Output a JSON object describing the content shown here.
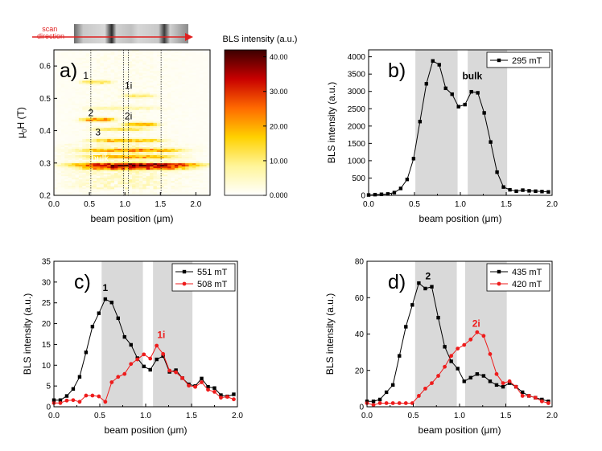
{
  "colors": {
    "black_series": "#000000",
    "red_series": "#ee1c1c",
    "shade": "#d9d9d9",
    "arrow": "#e02020"
  },
  "strip": {
    "scan_label": "scan\ndirection"
  },
  "chart_data": [
    {
      "id": "a",
      "type": "heatmap",
      "panel_label": "a)",
      "xlabel": "beam position (μm)",
      "ylabel": "μ0H (T)",
      "xlim": [
        0.0,
        2.2
      ],
      "ylim": [
        0.2,
        0.65
      ],
      "xticks": [
        "0.0",
        "0.5",
        "1.0",
        "1.5",
        "2.0"
      ],
      "yticks": [
        "0.2",
        "0.3",
        "0.4",
        "0.5",
        "0.6"
      ],
      "colorbar": {
        "title": "BLS intensity (a.u.)",
        "range": [
          0,
          42
        ],
        "ticks": [
          "40.00",
          "30.00",
          "20.00",
          "10.00",
          "0.000"
        ]
      },
      "vlines": [
        0.52,
        0.98,
        1.05,
        1.51
      ],
      "annotations": [
        {
          "text": "1",
          "x": 0.45,
          "y": 0.56,
          "color": "#000000"
        },
        {
          "text": "1i",
          "x": 1.05,
          "y": 0.53,
          "color": "#000000"
        },
        {
          "text": "2",
          "x": 0.52,
          "y": 0.445,
          "color": "#000000"
        },
        {
          "text": "2i",
          "x": 1.05,
          "y": 0.435,
          "color": "#000000"
        },
        {
          "text": "3",
          "x": 0.62,
          "y": 0.385,
          "color": "#000000"
        },
        {
          "text": "bulk",
          "x": 0.65,
          "y": 0.305,
          "color": "#ffffff"
        }
      ],
      "features": [
        {
          "name": "bulk",
          "y": 0.295,
          "x0": 0.15,
          "x1": 2.2,
          "peak": 40
        },
        {
          "name": "bulk-low",
          "y": 0.285,
          "x0": 0.3,
          "x1": 2.0,
          "peak": 30
        },
        {
          "name": "3",
          "y": 0.37,
          "x0": 0.45,
          "x1": 1.6,
          "peak": 22
        },
        {
          "name": "band-0.34",
          "y": 0.34,
          "x0": 0.3,
          "x1": 1.9,
          "peak": 24
        },
        {
          "name": "band-0.32",
          "y": 0.32,
          "x0": 0.35,
          "x1": 1.8,
          "peak": 20
        },
        {
          "name": "2",
          "y": 0.435,
          "x0": 0.35,
          "x1": 0.9,
          "peak": 28
        },
        {
          "name": "2i",
          "y": 0.42,
          "x0": 0.95,
          "x1": 1.5,
          "peak": 24
        },
        {
          "name": "band-0.405",
          "y": 0.405,
          "x0": 0.5,
          "x1": 1.4,
          "peak": 14
        },
        {
          "name": "1",
          "y": 0.551,
          "x0": 0.35,
          "x1": 0.85,
          "peak": 16
        },
        {
          "name": "1i",
          "y": 0.508,
          "x0": 0.95,
          "x1": 1.45,
          "peak": 12
        },
        {
          "name": "band-0.47",
          "y": 0.47,
          "x0": 0.4,
          "x1": 1.5,
          "peak": 8
        }
      ]
    },
    {
      "id": "b",
      "type": "line",
      "panel_label": "b)",
      "xlabel": "beam position (μm)",
      "ylabel": "BLS intensity (a.u.)",
      "xlim": [
        0.0,
        2.0
      ],
      "ylim": [
        0,
        4200
      ],
      "xticks": [
        0.0,
        0.5,
        1.0,
        1.5,
        2.0
      ],
      "yticks": [
        0,
        500,
        1000,
        1500,
        2000,
        2500,
        3000,
        3500,
        4000
      ],
      "shaded": [
        [
          0.51,
          0.97
        ],
        [
          1.08,
          1.51
        ]
      ],
      "annotations": [
        {
          "text": "bulk",
          "x": 1.13,
          "y": 3350,
          "color": "#000000"
        }
      ],
      "series": [
        {
          "name": "295 mT",
          "color": "#000000",
          "x": [
            0.0,
            0.07,
            0.14,
            0.21,
            0.28,
            0.35,
            0.42,
            0.49,
            0.56,
            0.63,
            0.7,
            0.77,
            0.84,
            0.91,
            0.98,
            1.05,
            1.12,
            1.19,
            1.26,
            1.33,
            1.4,
            1.47,
            1.54,
            1.61,
            1.68,
            1.75,
            1.82,
            1.89,
            1.96
          ],
          "values": [
            10,
            20,
            30,
            40,
            80,
            200,
            460,
            1060,
            2130,
            3220,
            3880,
            3770,
            3090,
            2920,
            2560,
            2620,
            2990,
            2960,
            2380,
            1540,
            670,
            240,
            160,
            120,
            150,
            130,
            120,
            110,
            100
          ]
        }
      ]
    },
    {
      "id": "c",
      "type": "line",
      "panel_label": "c)",
      "xlabel": "beam position (μm)",
      "ylabel": "BLS intensity (a.u.)",
      "xlim": [
        0.0,
        2.0
      ],
      "ylim": [
        0,
        35
      ],
      "xticks": [
        0.0,
        0.5,
        1.0,
        1.5,
        2.0
      ],
      "yticks": [
        0,
        5,
        10,
        15,
        20,
        25,
        30,
        35
      ],
      "shaded": [
        [
          0.52,
          0.97
        ],
        [
          1.08,
          1.51
        ]
      ],
      "annotations": [
        {
          "text": "1",
          "x": 0.56,
          "y": 27.8,
          "color": "#000000"
        },
        {
          "text": "1i",
          "x": 1.17,
          "y": 16.5,
          "color": "#ee1c1c"
        }
      ],
      "series": [
        {
          "name": "551 mT",
          "color": "#000000",
          "x": [
            0.0,
            0.07,
            0.14,
            0.21,
            0.28,
            0.35,
            0.42,
            0.49,
            0.56,
            0.63,
            0.7,
            0.77,
            0.84,
            0.91,
            0.98,
            1.05,
            1.12,
            1.19,
            1.26,
            1.33,
            1.4,
            1.47,
            1.54,
            1.61,
            1.68,
            1.75,
            1.82,
            1.89,
            1.96
          ],
          "values": [
            1.6,
            1.6,
            2.6,
            4.3,
            7.2,
            13.1,
            19.3,
            22.5,
            25.9,
            25.1,
            21.3,
            16.8,
            14.9,
            11.7,
            9.7,
            8.9,
            11.4,
            12.2,
            8.4,
            8.8,
            6.9,
            5.4,
            5.0,
            6.8,
            4.8,
            4.5,
            2.8,
            2.5,
            3.0
          ]
        },
        {
          "name": "508 mT",
          "color": "#ee1c1c",
          "x": [
            0.0,
            0.07,
            0.14,
            0.21,
            0.28,
            0.35,
            0.42,
            0.49,
            0.56,
            0.63,
            0.7,
            0.77,
            0.84,
            0.91,
            0.98,
            1.05,
            1.12,
            1.19,
            1.26,
            1.33,
            1.4,
            1.47,
            1.54,
            1.61,
            1.68,
            1.75,
            1.82,
            1.89,
            1.96
          ],
          "values": [
            0.9,
            0.9,
            1.5,
            1.6,
            1.2,
            2.7,
            2.7,
            2.5,
            1.2,
            5.9,
            7.2,
            7.9,
            10.3,
            11.4,
            12.6,
            11.6,
            14.7,
            12.7,
            8.7,
            8.3,
            6.9,
            5.1,
            4.8,
            5.9,
            4.1,
            3.6,
            2.2,
            2.4,
            1.8
          ]
        }
      ]
    },
    {
      "id": "d",
      "type": "line",
      "panel_label": "d)",
      "xlabel": "beam position (μm)",
      "ylabel": "BLS intensity (a.u.)",
      "xlim": [
        0.0,
        2.0
      ],
      "ylim": [
        0,
        80
      ],
      "xticks": [
        0.0,
        0.5,
        1.0,
        1.5,
        2.0
      ],
      "yticks": [
        0,
        20,
        40,
        60,
        80
      ],
      "shaded": [
        [
          0.52,
          0.97
        ],
        [
          1.06,
          1.51
        ]
      ],
      "annotations": [
        {
          "text": "2",
          "x": 0.66,
          "y": 70,
          "color": "#000000"
        },
        {
          "text": "2i",
          "x": 1.18,
          "y": 44,
          "color": "#ee1c1c"
        }
      ],
      "series": [
        {
          "name": "435 mT",
          "color": "#000000",
          "x": [
            0.0,
            0.07,
            0.14,
            0.21,
            0.28,
            0.35,
            0.42,
            0.49,
            0.56,
            0.63,
            0.7,
            0.77,
            0.84,
            0.91,
            0.98,
            1.05,
            1.12,
            1.19,
            1.26,
            1.33,
            1.4,
            1.47,
            1.54,
            1.61,
            1.68,
            1.75,
            1.82,
            1.89,
            1.96
          ],
          "values": [
            3,
            3,
            4,
            8,
            12,
            28,
            44,
            56,
            68,
            65,
            66,
            49,
            33,
            25,
            21,
            14,
            16,
            18,
            17,
            14,
            12,
            11,
            13,
            11,
            8,
            6,
            5,
            4,
            3
          ]
        },
        {
          "name": "420 mT",
          "color": "#ee1c1c",
          "x": [
            0.0,
            0.07,
            0.14,
            0.21,
            0.28,
            0.35,
            0.42,
            0.49,
            0.56,
            0.63,
            0.7,
            0.77,
            0.84,
            0.91,
            0.98,
            1.05,
            1.12,
            1.19,
            1.26,
            1.33,
            1.4,
            1.47,
            1.54,
            1.61,
            1.68,
            1.75,
            1.82,
            1.89,
            1.96
          ],
          "values": [
            2,
            1,
            2,
            2,
            2,
            2,
            2,
            2,
            6,
            10,
            13,
            17,
            22,
            28,
            32,
            34,
            37,
            41,
            39,
            29,
            18,
            13,
            14,
            11,
            6,
            6,
            5,
            3,
            2
          ]
        }
      ]
    }
  ]
}
